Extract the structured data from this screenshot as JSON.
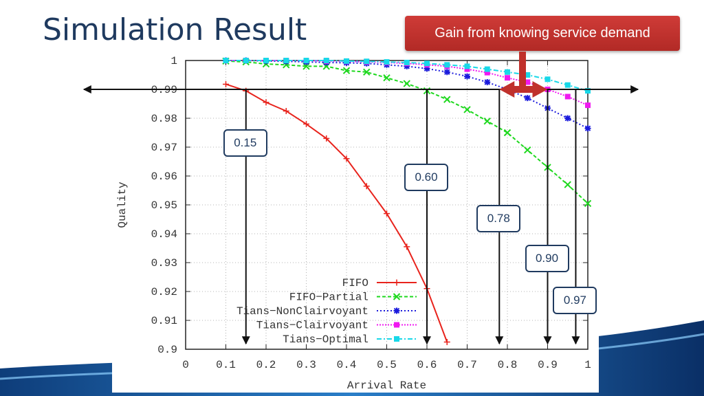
{
  "slide": {
    "title": "Simulation Result",
    "callout": "Gain from knowing service demand"
  },
  "chart_data": {
    "type": "line",
    "xlabel": "Arrival Rate",
    "ylabel": "Quality",
    "xlim": [
      0,
      1
    ],
    "ylim": [
      0.9,
      1
    ],
    "x_ticks": [
      0,
      0.1,
      0.2,
      0.3,
      0.4,
      0.5,
      0.6,
      0.7,
      0.8,
      0.9,
      1
    ],
    "y_ticks": [
      0.9,
      0.91,
      0.92,
      0.93,
      0.94,
      0.95,
      0.96,
      0.97,
      0.98,
      0.99,
      1
    ],
    "x_tick_labels": [
      "0",
      "0.1",
      "0.2",
      "0.3",
      "0.4",
      "0.5",
      "0.6",
      "0.7",
      "0.8",
      "0.9",
      "1"
    ],
    "y_tick_labels": [
      "0.9",
      "0.91",
      "0.92",
      "0.93",
      "0.94",
      "0.95",
      "0.96",
      "0.97",
      "0.98",
      "0.99",
      "1"
    ],
    "grid": true,
    "legend_position": "bottom-center",
    "series": [
      {
        "name": "FIFO",
        "color": "#e8231c",
        "dash": "",
        "marker": "plus",
        "x": [
          0.1,
          0.15,
          0.2,
          0.25,
          0.3,
          0.35,
          0.4,
          0.45,
          0.5,
          0.55,
          0.6,
          0.65
        ],
        "y": [
          0.9918,
          0.9895,
          0.9855,
          0.9825,
          0.978,
          0.973,
          0.966,
          0.9565,
          0.947,
          0.9355,
          0.921,
          0.9025
        ]
      },
      {
        "name": "FIFO−Partial",
        "color": "#1ed81e",
        "dash": "5,3",
        "marker": "x",
        "x": [
          0.1,
          0.15,
          0.2,
          0.25,
          0.3,
          0.35,
          0.4,
          0.45,
          0.5,
          0.55,
          0.6,
          0.65,
          0.7,
          0.75,
          0.8,
          0.85,
          0.9,
          0.95,
          1
        ],
        "y": [
          0.9998,
          0.9995,
          0.9988,
          0.9985,
          0.998,
          0.998,
          0.9965,
          0.996,
          0.994,
          0.992,
          0.9895,
          0.9865,
          0.983,
          0.979,
          0.975,
          0.969,
          0.963,
          0.957,
          0.9505
        ]
      },
      {
        "name": "Tians−NonClairvoyant",
        "color": "#1a1adc",
        "dash": "2,3",
        "marker": "star",
        "x": [
          0.1,
          0.15,
          0.2,
          0.25,
          0.3,
          0.35,
          0.4,
          0.45,
          0.5,
          0.55,
          0.6,
          0.65,
          0.7,
          0.75,
          0.8,
          0.85,
          0.9,
          0.95,
          1
        ],
        "y": [
          1.0,
          1.0,
          0.9998,
          0.9997,
          0.9995,
          0.9993,
          0.9992,
          0.999,
          0.9985,
          0.998,
          0.9972,
          0.996,
          0.9945,
          0.9925,
          0.99,
          0.987,
          0.9835,
          0.98,
          0.9765
        ]
      },
      {
        "name": "Tians−Clairvoyant",
        "color": "#f018f0",
        "dash": "2,2",
        "marker": "square",
        "x": [
          0.1,
          0.15,
          0.2,
          0.25,
          0.3,
          0.35,
          0.4,
          0.45,
          0.5,
          0.55,
          0.6,
          0.65,
          0.7,
          0.75,
          0.8,
          0.85,
          0.9,
          0.95,
          1
        ],
        "y": [
          1.0,
          1.0,
          1.0,
          1.0,
          1.0,
          0.9998,
          0.9997,
          0.9995,
          0.9993,
          0.999,
          0.9985,
          0.998,
          0.997,
          0.9958,
          0.994,
          0.9925,
          0.99,
          0.9875,
          0.9845
        ]
      },
      {
        "name": "Tians−Optimal",
        "color": "#18d8e8",
        "dash": "7,3,2,3",
        "marker": "square",
        "x": [
          0.1,
          0.15,
          0.2,
          0.25,
          0.3,
          0.35,
          0.4,
          0.45,
          0.5,
          0.55,
          0.6,
          0.65,
          0.7,
          0.75,
          0.8,
          0.85,
          0.9,
          0.95,
          1
        ],
        "y": [
          1.0,
          1.0,
          1.0,
          1.0,
          1.0,
          1.0,
          0.9998,
          0.9997,
          0.9995,
          0.9993,
          0.999,
          0.9985,
          0.998,
          0.997,
          0.996,
          0.995,
          0.9935,
          0.9915,
          0.9895
        ]
      }
    ],
    "reference_line": {
      "y": 0.99
    },
    "annotations": [
      {
        "label": "0.15",
        "x": 0.15
      },
      {
        "label": "0.60",
        "x": 0.6
      },
      {
        "label": "0.78",
        "x": 0.78
      },
      {
        "label": "0.90",
        "x": 0.9
      },
      {
        "label": "0.97",
        "x": 0.97
      }
    ],
    "gain_arrow": {
      "x_from": 0.78,
      "x_to": 0.9,
      "y": 0.99,
      "color": "#c0312c"
    }
  }
}
